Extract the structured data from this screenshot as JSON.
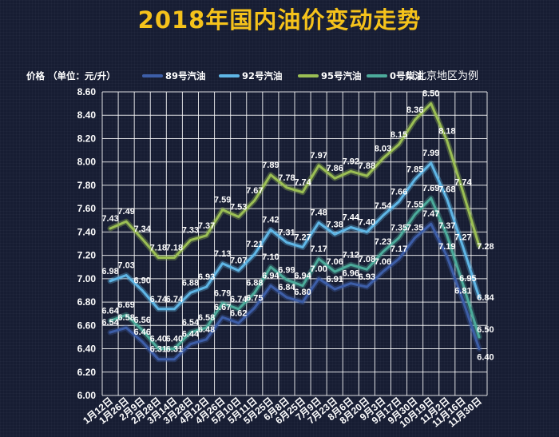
{
  "chart_data": {
    "type": "line",
    "title": "2018年国内油价变动走势",
    "ylabel": "价格 （单位：元/升）",
    "note": "以北京地区为例",
    "ylim": [
      6.0,
      8.6
    ],
    "ytick_labels": [
      "6.00",
      "6.20",
      "6.40",
      "6.60",
      "6.80",
      "7.00",
      "7.20",
      "7.40",
      "7.60",
      "7.80",
      "8.00",
      "8.20",
      "8.40",
      "8.60"
    ],
    "x": [
      "1月12日",
      "1月26日",
      "2月9日",
      "2月28日",
      "3月14日",
      "3月28日",
      "4月12日",
      "4月26日",
      "5月10日",
      "5月11日",
      "5月25日",
      "6月8日",
      "6月25日",
      "7月9日",
      "7月23日",
      "8月6日",
      "8月20日",
      "9月3日",
      "9月17日",
      "9月30日",
      "10月19日",
      "11月2日",
      "11月16日",
      "11月30日"
    ],
    "grid": true,
    "legend_position": "top",
    "series": [
      {
        "name": "89号汽油",
        "color": "#3d5ea8",
        "values": [
          6.54,
          6.58,
          6.46,
          6.31,
          6.31,
          6.44,
          6.48,
          6.67,
          6.62,
          6.75,
          6.94,
          6.84,
          6.8,
          7.0,
          6.91,
          6.96,
          6.93,
          7.06,
          7.17,
          7.35,
          7.47,
          7.19,
          6.81,
          6.4
        ],
        "labels": [
          "6.54",
          "6.58",
          "6.46",
          "6.31",
          "6.31",
          "6.44",
          "6.48",
          "6.67",
          "6.62",
          "6.75",
          "6.94",
          "6.84",
          "6.80",
          "7.00",
          "6.91",
          "6.96",
          "6.93",
          "7.06",
          "7.17",
          "7.35",
          "7.47",
          "7.19",
          "6.81",
          "6.40"
        ]
      },
      {
        "name": "92号汽油",
        "color": "#5fb6e6",
        "values": [
          6.98,
          7.03,
          6.9,
          6.74,
          6.74,
          6.88,
          6.93,
          7.13,
          7.07,
          7.21,
          7.42,
          7.31,
          7.27,
          7.48,
          7.38,
          7.44,
          7.4,
          7.54,
          7.66,
          7.85,
          7.99,
          7.68,
          7.27,
          6.84
        ],
        "labels": [
          "6.98",
          "7.03",
          "6.90",
          "6.74",
          "6.74",
          "6.88",
          "6.93",
          "7.13",
          "7.07",
          "7.21",
          "7.42",
          "7.31",
          "7.27",
          "7.48",
          "7.38",
          "7.44",
          "7.40",
          "7.54",
          "7.66",
          "7.85",
          "7.99",
          "7.68",
          "7.27",
          "6.84"
        ]
      },
      {
        "name": "95号汽油",
        "color": "#9bbf54",
        "values": [
          7.43,
          7.49,
          7.34,
          7.18,
          7.18,
          7.33,
          7.37,
          7.59,
          7.53,
          7.67,
          7.89,
          7.78,
          7.74,
          7.97,
          7.86,
          7.92,
          7.88,
          8.03,
          8.15,
          8.36,
          8.5,
          8.18,
          7.74,
          7.28
        ],
        "labels": [
          "7.43",
          "7.49",
          "7.34",
          "7.18",
          "7.18",
          "7.33",
          "7.37",
          "7.59",
          "7.53",
          "7.67",
          "7.89",
          "7.78",
          "7.74",
          "7.97",
          "7.86",
          "7.92",
          "7.88",
          "8.03",
          "8.15",
          "8.36",
          "8.50",
          "8.18",
          "7.74",
          "7.28"
        ]
      },
      {
        "name": "0号柴油",
        "color": "#4cab9b",
        "values": [
          6.64,
          6.69,
          6.56,
          6.4,
          6.4,
          6.54,
          6.58,
          6.79,
          6.74,
          6.88,
          7.1,
          6.99,
          6.94,
          7.17,
          7.06,
          7.12,
          7.08,
          7.23,
          7.35,
          7.55,
          7.69,
          7.37,
          6.95,
          6.5
        ],
        "labels": [
          "6.64",
          "6.69",
          "6.56",
          "6.40",
          "6.40",
          "6.54",
          "6.58",
          "6.79",
          "6.74",
          "6.88",
          "7.10",
          "6.99",
          "6.94",
          "7.17",
          "7.06",
          "7.12",
          "7.08",
          "7.23",
          "7.35",
          "7.55",
          "7.69",
          "7.37",
          "6.95",
          "6.50"
        ]
      }
    ]
  }
}
